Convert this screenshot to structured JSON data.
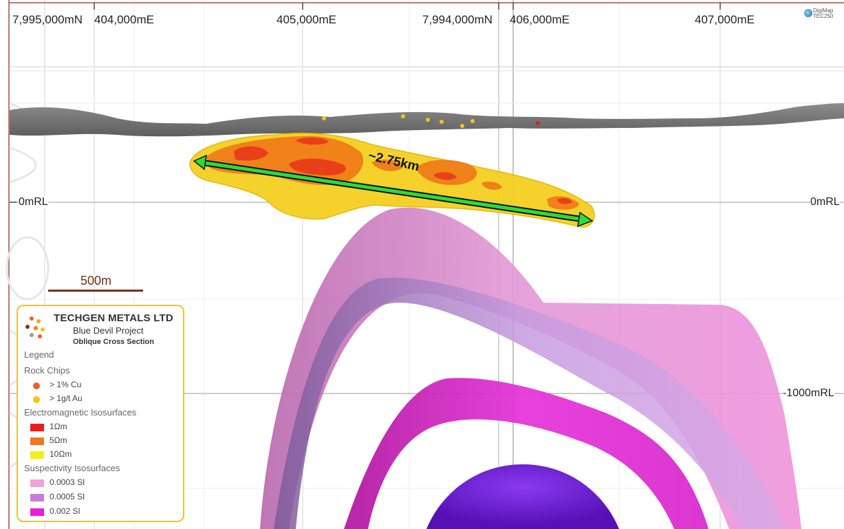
{
  "top_axis": {
    "labels": [
      "7,995,000mN",
      "404,000mE",
      "405,000mE",
      "7,994,000mN",
      "406,000mE",
      "407,000mE"
    ]
  },
  "rl_labels": {
    "left_zero": "0mRL",
    "right_zero": "0mRL",
    "right_minus1000": "-1000mRL"
  },
  "scale_bar": {
    "label": "500m"
  },
  "distance_annotation": "~2.75km",
  "branding": {
    "line1": "DigiMap",
    "line2": "TEC250"
  },
  "legend": {
    "company": "TECHGEN METALS LTD",
    "project": "Blue Devil Project",
    "section": "Oblique Cross Section",
    "heading": "Legend",
    "groups": [
      {
        "title": "Rock Chips",
        "items": [
          {
            "label": "> 1% Cu",
            "color": "#e8622b",
            "shape": "dot"
          },
          {
            "label": "> 1g/t Au",
            "color": "#f5c518",
            "shape": "dot"
          }
        ]
      },
      {
        "title": "Electromagnetic Isosurfaces",
        "items": [
          {
            "label": "1Ωm",
            "color": "#ee1c1c",
            "shape": "box"
          },
          {
            "label": "5Ωm",
            "color": "#f07820",
            "shape": "box"
          },
          {
            "label": "10Ωm",
            "color": "#f5ee1a",
            "shape": "box"
          }
        ]
      },
      {
        "title": "Suspectivity Isosurfaces",
        "items": [
          {
            "label": "0.0003 SI",
            "color": "#f2a2da",
            "shape": "box"
          },
          {
            "label": "0.0005 SI",
            "color": "#c87ed9",
            "shape": "box"
          },
          {
            "label": "0.002 SI",
            "color": "#e81fd9",
            "shape": "box"
          }
        ]
      }
    ]
  },
  "colors": {
    "terrain": "#6b6b6b",
    "em_10": "#f5d020",
    "em_5": "#f07a18",
    "em_1": "#e83a1a",
    "si_0003": "#ec8fd8",
    "si_0005": "#b77cd0",
    "si_002": "#e31ed8",
    "core": "#6a18c8",
    "arrow": "#2bdc3a",
    "frame": "#b87a70"
  }
}
